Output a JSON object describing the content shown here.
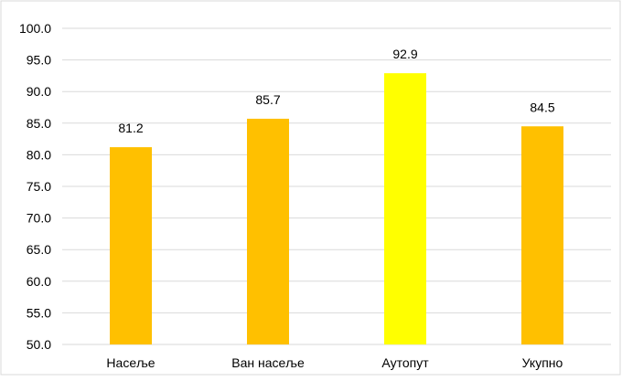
{
  "chart_data": {
    "type": "bar",
    "title": "",
    "xlabel": "",
    "ylabel": "",
    "categories": [
      "Насеље",
      "Ван насеље",
      "Аутопут",
      "Укупно"
    ],
    "values": [
      81.2,
      85.7,
      92.9,
      84.5
    ],
    "value_labels": [
      "81.2",
      "85.7",
      "92.9",
      "84.5"
    ],
    "ylim": [
      50,
      100
    ],
    "yticks": [
      "50.0",
      "55.0",
      "60.0",
      "65.0",
      "70.0",
      "75.0",
      "80.0",
      "85.0",
      "90.0",
      "95.0",
      "100.0"
    ],
    "bar_colors": [
      "#FFC000",
      "#FFC000",
      "#FFFF00",
      "#FFC000"
    ],
    "grid": true,
    "legend": "none"
  }
}
